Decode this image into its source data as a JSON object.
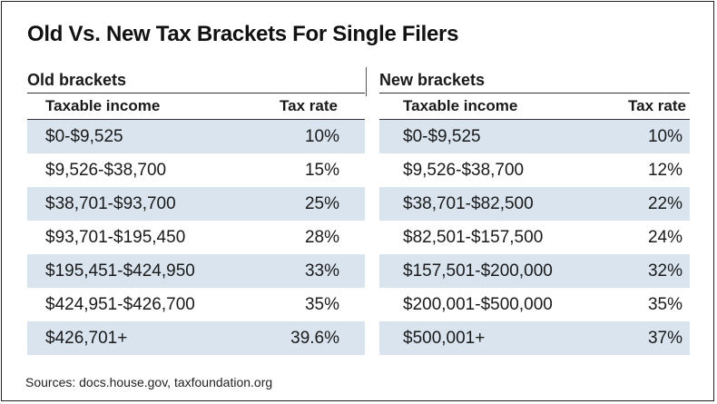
{
  "title": "Old Vs. New Tax Brackets For Single Filers",
  "old": {
    "heading": "Old brackets",
    "income_header": "Taxable income",
    "rate_header": "Tax rate",
    "rows": [
      {
        "income": "$0-$9,525",
        "rate": "10%"
      },
      {
        "income": "$9,526-$38,700",
        "rate": "15%"
      },
      {
        "income": "$38,701-$93,700",
        "rate": "25%"
      },
      {
        "income": "$93,701-$195,450",
        "rate": "28%"
      },
      {
        "income": "$195,451-$424,950",
        "rate": "33%"
      },
      {
        "income": "$424,951-$426,700",
        "rate": "35%"
      },
      {
        "income": "$426,701+",
        "rate": "39.6%"
      }
    ]
  },
  "new": {
    "heading": "New brackets",
    "income_header": "Taxable income",
    "rate_header": "Tax rate",
    "rows": [
      {
        "income": "$0-$9,525",
        "rate": "10%"
      },
      {
        "income": "$9,526-$38,700",
        "rate": "12%"
      },
      {
        "income": "$38,701-$82,500",
        "rate": "22%"
      },
      {
        "income": "$82,501-$157,500",
        "rate": "24%"
      },
      {
        "income": "$157,501-$200,000",
        "rate": "32%"
      },
      {
        "income": "$200,001-$500,000",
        "rate": "35%"
      },
      {
        "income": "$500,001+",
        "rate": "37%"
      }
    ]
  },
  "source": "Sources: docs.house.gov, taxfoundation.org",
  "colors": {
    "row_shade": "#d9e4ef"
  }
}
